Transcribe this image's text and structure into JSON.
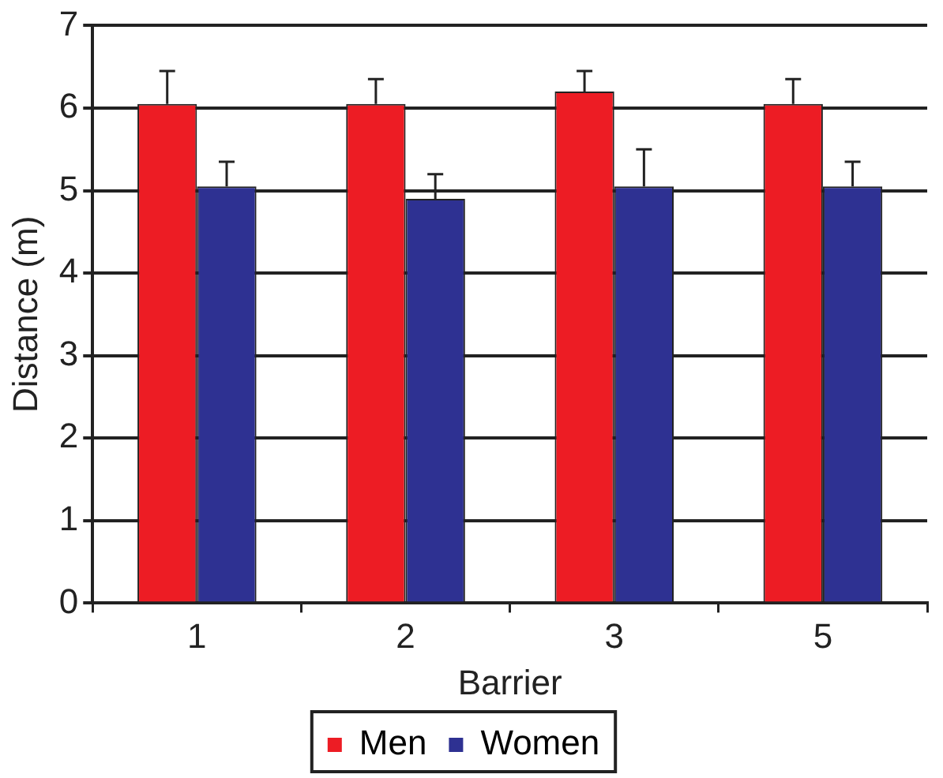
{
  "chart_data": {
    "type": "bar",
    "xlabel": "Barrier",
    "ylabel": "Distance (m)",
    "categories": [
      "1",
      "2",
      "3",
      "5"
    ],
    "series": [
      {
        "name": "Men",
        "color": "#ed1c24",
        "values": [
          6.05,
          6.05,
          6.2,
          6.05
        ],
        "errors": [
          [
            6.05,
            6.45
          ],
          [
            6.05,
            6.35
          ],
          [
            6.2,
            6.45
          ],
          [
            6.05,
            6.35
          ]
        ]
      },
      {
        "name": "Women",
        "color": "#2e3192",
        "values": [
          5.05,
          4.9,
          5.05,
          5.05
        ],
        "errors": [
          [
            5.05,
            5.35
          ],
          [
            4.9,
            5.2
          ],
          [
            5.05,
            5.5
          ],
          [
            5.05,
            5.35
          ]
        ]
      }
    ],
    "ylim": [
      0,
      7
    ],
    "yticks": [
      0,
      1,
      2,
      3,
      4,
      5,
      6,
      7
    ],
    "grid": "y",
    "legend": "bottom"
  }
}
